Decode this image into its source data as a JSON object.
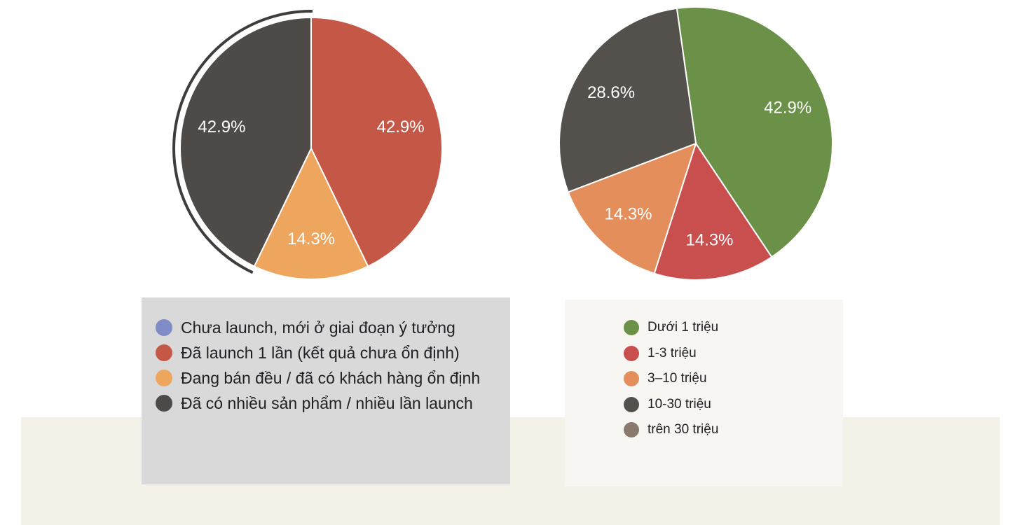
{
  "chart_data": [
    {
      "type": "pie",
      "title": "",
      "categories": [
        "Chưa launch, mới ở giai đoạn ý tưởng",
        "Đã launch 1 lần (kết quả chưa ổn định)",
        "Đang bán đều / đã có khách hàng ổn định",
        "Đã có nhiều sản phẩm / nhiều lần launch"
      ],
      "values": [
        0,
        42.9,
        14.3,
        42.9
      ],
      "labels": [
        "",
        "42.9%",
        "14.3%",
        "42.9%"
      ],
      "colors": [
        "#7f8cc7",
        "#c55746",
        "#eea55e",
        "#4d4a47"
      ],
      "highlighted": "Đã có nhiều sản phẩm / nhiều lần launch",
      "legend_position": "bottom"
    },
    {
      "type": "pie",
      "title": "",
      "categories": [
        "Dưới 1 triệu",
        "1-3 triệu",
        "3–10 triệu",
        "10-30 triệu",
        "trên 30 triệu"
      ],
      "values": [
        42.9,
        14.3,
        14.3,
        28.6,
        0
      ],
      "labels": [
        "42.9%",
        "14.3%",
        "14.3%",
        "28.6%",
        ""
      ],
      "colors": [
        "#6a9147",
        "#c94f4f",
        "#e48e5c",
        "#54504c",
        "#8a7a6e"
      ],
      "legend_position": "bottom"
    }
  ]
}
